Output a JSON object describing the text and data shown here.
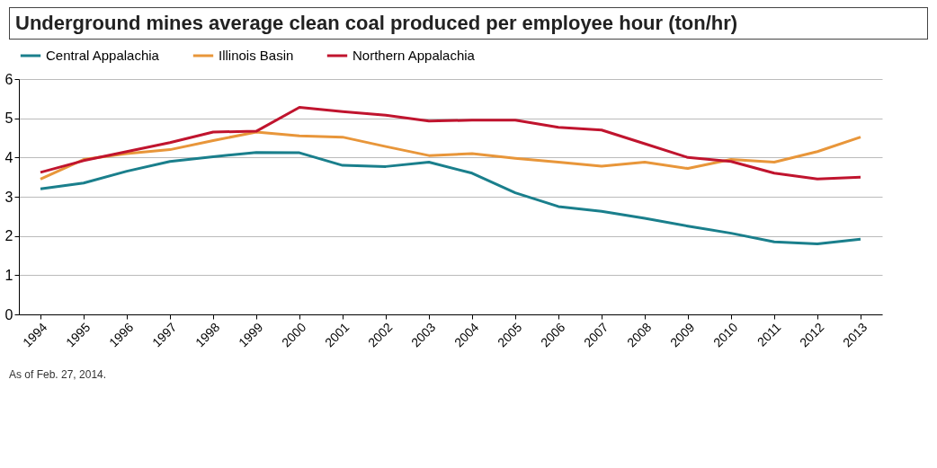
{
  "chart_data": {
    "type": "line",
    "title": "Underground mines average clean coal produced per employee hour (ton/hr)",
    "categories": [
      "1994",
      "1995",
      "1996",
      "1997",
      "1998",
      "1999",
      "2000",
      "2001",
      "2002",
      "2003",
      "2004",
      "2005",
      "2006",
      "2007",
      "2008",
      "2009",
      "2010",
      "2011",
      "2012",
      "2013"
    ],
    "series": [
      {
        "name": "Central Appalachia",
        "color": "#1a7f8c",
        "values": [
          3.2,
          3.35,
          3.65,
          3.9,
          4.02,
          4.13,
          4.12,
          3.8,
          3.77,
          3.88,
          3.6,
          3.1,
          2.75,
          2.63,
          2.45,
          2.25,
          2.07,
          1.85,
          1.8,
          1.92
        ]
      },
      {
        "name": "Illinois Basin",
        "color": "#e8963a",
        "values": [
          3.45,
          3.95,
          4.1,
          4.2,
          4.43,
          4.65,
          4.55,
          4.52,
          4.28,
          4.05,
          4.1,
          3.98,
          3.88,
          3.78,
          3.88,
          3.72,
          3.95,
          3.88,
          4.15,
          4.52
        ]
      },
      {
        "name": "Northern Appalachia",
        "color": "#c0142e",
        "values": [
          3.62,
          3.92,
          4.15,
          4.38,
          4.65,
          4.67,
          5.28,
          5.17,
          5.08,
          4.93,
          4.95,
          4.95,
          4.77,
          4.7,
          4.35,
          4.0,
          3.9,
          3.6,
          3.45,
          3.5
        ]
      }
    ],
    "ylim": [
      0,
      6
    ],
    "yticks": [
      0,
      1,
      2,
      3,
      4,
      5,
      6
    ],
    "grid": "y",
    "legend": "top",
    "marker": "none",
    "line_style": "solid",
    "annotations": [
      "As of Feb. 27, 2014."
    ]
  }
}
